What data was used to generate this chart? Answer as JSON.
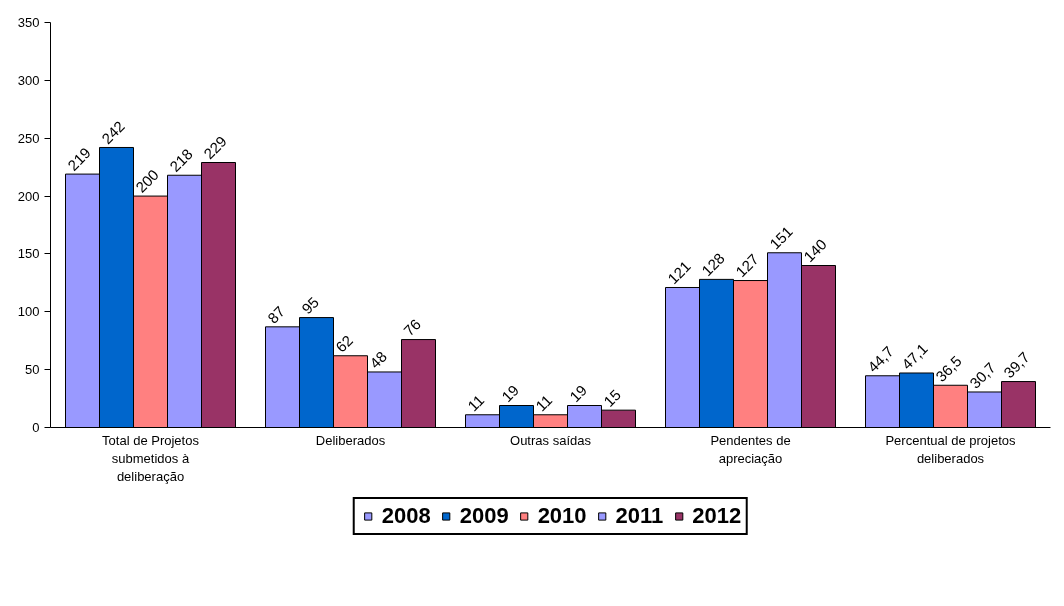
{
  "chart_data": {
    "type": "bar",
    "categories": [
      "Total de Projetos submetidos à deliberação",
      "Deliberados",
      "Outras saídas",
      "Pendentes de apreciação",
      "Percentual de projetos deliberados"
    ],
    "series": [
      {
        "name": "2008",
        "color": "#9999ff",
        "values": [
          219,
          87,
          11,
          121,
          44.7
        ],
        "value_labels": [
          "219",
          "87",
          "11",
          "121",
          "44,7"
        ]
      },
      {
        "name": "2009",
        "color": "#0066cc",
        "values": [
          242,
          95,
          19,
          128,
          47.1
        ],
        "value_labels": [
          "242",
          "95",
          "19",
          "128",
          "47,1"
        ]
      },
      {
        "name": "2010",
        "color": "#ff8080",
        "values": [
          200,
          62,
          11,
          127,
          36.5
        ],
        "value_labels": [
          "200",
          "62",
          "11",
          "127",
          "36,5"
        ]
      },
      {
        "name": "2011",
        "color": "#9999ff",
        "values": [
          218,
          48,
          19,
          151,
          30.7
        ],
        "value_labels": [
          "218",
          "48",
          "19",
          "151",
          "30,7"
        ]
      },
      {
        "name": "2012",
        "color": "#993366",
        "values": [
          229,
          76,
          15,
          140,
          39.7
        ],
        "value_labels": [
          "229",
          "76",
          "15",
          "140",
          "39,7"
        ]
      }
    ],
    "ylim": [
      0,
      350
    ],
    "yticks": [
      0,
      50,
      100,
      150,
      200,
      250,
      300,
      350
    ],
    "grid": false,
    "legend": "bottom"
  }
}
